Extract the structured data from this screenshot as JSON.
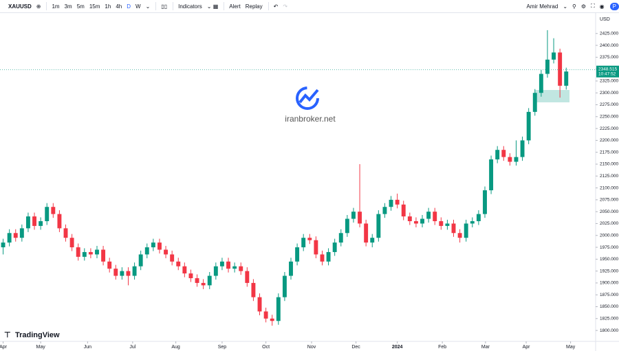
{
  "toolbar": {
    "symbol": "XAUUSD",
    "intervals": [
      "1m",
      "3m",
      "5m",
      "15m",
      "1h",
      "4h",
      "D",
      "W"
    ],
    "indicators": "Indicators",
    "alert": "Alert",
    "replay": "Replay",
    "user": "Amir Mehrad"
  },
  "watermark": "iranbroker.net",
  "brand": "TradingView",
  "chart_data": {
    "type": "candlestick",
    "currency": "USD",
    "up_color": "#089981",
    "down_color": "#f23645",
    "last_price": 2348.515,
    "countdown": "10:47:52",
    "xlim": [
      -0.5,
      94.7
    ],
    "ylim": [
      1777,
      2468
    ],
    "xticks": [
      {
        "value": 0,
        "label": "Apr"
      },
      {
        "value": 6,
        "label": "May"
      },
      {
        "value": 13.5,
        "label": "Jun"
      },
      {
        "value": 20.7,
        "label": "Jul"
      },
      {
        "value": 27.6,
        "label": "Aug"
      },
      {
        "value": 35,
        "label": "Sep"
      },
      {
        "value": 42,
        "label": "Oct"
      },
      {
        "value": 49.3,
        "label": "Nov"
      },
      {
        "value": 56.4,
        "label": "Dec"
      },
      {
        "value": 63,
        "label": "2024"
      },
      {
        "value": 70.2,
        "label": "Feb"
      },
      {
        "value": 77.1,
        "label": "Mar"
      },
      {
        "value": 83.6,
        "label": "Apr"
      },
      {
        "value": 90.7,
        "label": "May"
      }
    ],
    "yticks": [
      {
        "value": 1800,
        "label": "1800.000"
      },
      {
        "value": 1825,
        "label": "1825.000"
      },
      {
        "value": 1850,
        "label": "1850.000"
      },
      {
        "value": 1875,
        "label": "1875.000"
      },
      {
        "value": 1900,
        "label": "1900.000"
      },
      {
        "value": 1925,
        "label": "1925.000"
      },
      {
        "value": 1950,
        "label": "1950.000"
      },
      {
        "value": 1975,
        "label": "1975.000"
      },
      {
        "value": 2000,
        "label": "2000.000"
      },
      {
        "value": 2025,
        "label": "2025.000"
      },
      {
        "value": 2050,
        "label": "2050.000"
      },
      {
        "value": 2075,
        "label": "2075.000"
      },
      {
        "value": 2100,
        "label": "2100.000"
      },
      {
        "value": 2125,
        "label": "2125.000"
      },
      {
        "value": 2150,
        "label": "2150.000"
      },
      {
        "value": 2175,
        "label": "2175.000"
      },
      {
        "value": 2200,
        "label": "2200.000"
      },
      {
        "value": 2225,
        "label": "2225.000"
      },
      {
        "value": 2250,
        "label": "2250.000"
      },
      {
        "value": 2275,
        "label": "2275.000"
      },
      {
        "value": 2300,
        "label": "2300.000"
      },
      {
        "value": 2325,
        "label": "2325.000"
      },
      {
        "value": 2350,
        "label": "2350.000"
      },
      {
        "value": 2375,
        "label": "2375.000"
      },
      {
        "value": 2400,
        "label": "2400.000"
      },
      {
        "value": 2425,
        "label": "2425.000"
      }
    ],
    "open": [
      1975,
      1985,
      2005,
      1995,
      2015,
      2040,
      2020,
      2030,
      2060,
      2045,
      2015,
      1995,
      1975,
      1955,
      1965,
      1960,
      1970,
      1945,
      1930,
      1915,
      1925,
      1915,
      1935,
      1960,
      1975,
      1985,
      1970,
      1960,
      1945,
      1935,
      1920,
      1910,
      1900,
      1895,
      1915,
      1935,
      1945,
      1930,
      1935,
      1925,
      1900,
      1870,
      1840,
      1825,
      1820,
      1870,
      1915,
      1945,
      1975,
      1995,
      1990,
      1960,
      1945,
      1965,
      1985,
      2005,
      2035,
      2050,
      2025,
      1985,
      1995,
      2045,
      2060,
      2075,
      2065,
      2040,
      2030,
      2025,
      2035,
      2050,
      2030,
      2020,
      2025,
      2005,
      1995,
      2025,
      2030,
      2045,
      2095,
      2160,
      2180,
      2165,
      2155,
      2165,
      2200,
      2260,
      2300,
      2340,
      2370,
      2385,
      2315
    ],
    "high": [
      1993,
      2013,
      2013,
      2023,
      2048,
      2048,
      2038,
      2068,
      2068,
      2053,
      2023,
      2003,
      1983,
      1973,
      1973,
      1978,
      1978,
      1953,
      1938,
      1933,
      1933,
      1943,
      1968,
      1983,
      1993,
      1993,
      1978,
      1968,
      1953,
      1943,
      1928,
      1918,
      1908,
      1923,
      1943,
      1953,
      1953,
      1943,
      1943,
      1933,
      1908,
      1878,
      1848,
      1833,
      1878,
      1923,
      1953,
      1983,
      2003,
      2003,
      1998,
      1968,
      1973,
      1993,
      2013,
      2043,
      2058,
      2150,
      2033,
      2003,
      2053,
      2068,
      2083,
      2088,
      2073,
      2048,
      2038,
      2043,
      2058,
      2058,
      2038,
      2033,
      2033,
      2013,
      2033,
      2038,
      2053,
      2103,
      2168,
      2188,
      2188,
      2173,
      2200,
      2208,
      2268,
      2308,
      2348,
      2432,
      2415,
      2393,
      2353
    ],
    "low": [
      1960,
      1977,
      1987,
      1987,
      2007,
      2012,
      2012,
      2022,
      2037,
      2007,
      1987,
      1967,
      1947,
      1947,
      1952,
      1952,
      1937,
      1922,
      1907,
      1907,
      1895,
      1907,
      1927,
      1952,
      1967,
      1962,
      1952,
      1937,
      1927,
      1912,
      1902,
      1892,
      1887,
      1887,
      1907,
      1927,
      1922,
      1922,
      1917,
      1892,
      1862,
      1832,
      1817,
      1810,
      1812,
      1862,
      1907,
      1937,
      1967,
      1982,
      1952,
      1937,
      1937,
      1957,
      1977,
      1997,
      2027,
      2017,
      1977,
      1975,
      1987,
      2037,
      2052,
      2057,
      2032,
      2022,
      2017,
      2017,
      2027,
      2022,
      2012,
      2012,
      1997,
      1985,
      1987,
      2017,
      2022,
      2037,
      2087,
      2152,
      2157,
      2147,
      2147,
      2157,
      2192,
      2252,
      2292,
      2332,
      2362,
      2290,
      2307
    ],
    "close": [
      1985,
      2005,
      1995,
      2015,
      2040,
      2020,
      2030,
      2060,
      2045,
      2015,
      1995,
      1975,
      1955,
      1965,
      1960,
      1970,
      1945,
      1930,
      1915,
      1925,
      1915,
      1935,
      1960,
      1975,
      1985,
      1970,
      1960,
      1945,
      1935,
      1920,
      1910,
      1900,
      1895,
      1915,
      1935,
      1945,
      1930,
      1935,
      1925,
      1900,
      1870,
      1840,
      1825,
      1820,
      1870,
      1915,
      1945,
      1975,
      1995,
      1990,
      1960,
      1945,
      1965,
      1985,
      2005,
      2035,
      2050,
      2025,
      1985,
      1995,
      2045,
      2060,
      2075,
      2065,
      2040,
      2030,
      2025,
      2035,
      2050,
      2030,
      2020,
      2025,
      2005,
      1995,
      2025,
      2030,
      2045,
      2095,
      2160,
      2180,
      2165,
      2155,
      2165,
      2200,
      2260,
      2300,
      2340,
      2370,
      2385,
      2315,
      2345
    ]
  }
}
